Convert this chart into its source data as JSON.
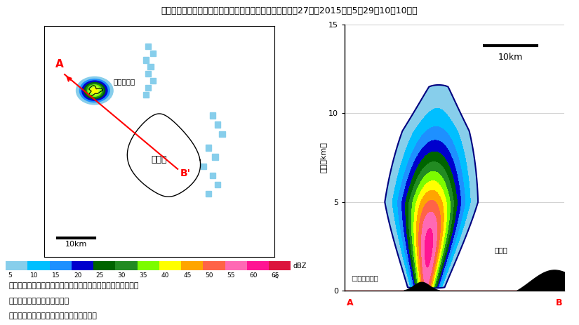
{
  "title": "気象レーダーによって捉えられた口永良部島の噴煙（平成27年（2015年）5月29日10時10分）",
  "title_bg": "#5bc8f0",
  "title_color": "black",
  "colorbar_levels": [
    5,
    10,
    15,
    20,
    25,
    30,
    35,
    40,
    45,
    50,
    55,
    60,
    65
  ],
  "colorbar_colors": [
    "#87CEEB",
    "#00BFFF",
    "#1E90FF",
    "#0000CD",
    "#006400",
    "#228B22",
    "#7CFC00",
    "#FFFF00",
    "#FFA500",
    "#FF6347",
    "#FF69B4",
    "#FF1493",
    "#DC143C"
  ],
  "caption1": "（左）レーダー反射強度の水平分布図（高度２キロメートル）",
  "caption2": "（右）Ａ－Ｂ間の鉛直断面図",
  "caption3": "暖色系ほど反射強度が大きいことを示す。",
  "right_ylabel": "高さ（km）",
  "scale_bar_km": "10km",
  "label_kuchinoerabu": "口永良部島",
  "label_yakushima_map": "屋久島",
  "label_kuchinoerabu_cross": "口永良部島",
  "label_yakushima_cross": "屋久島"
}
